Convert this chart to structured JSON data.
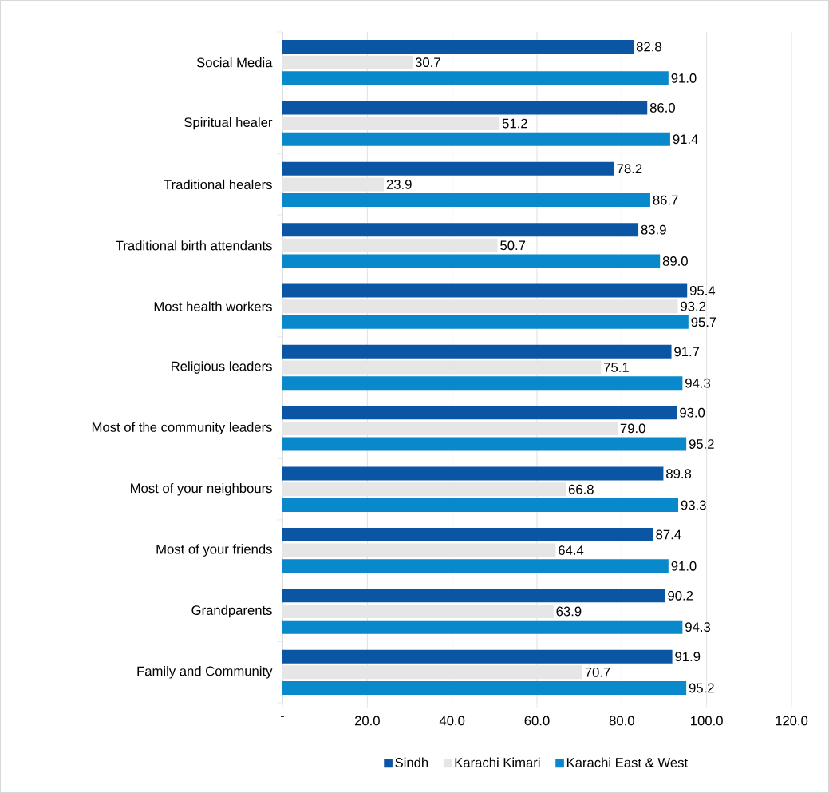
{
  "chart_data": {
    "type": "bar",
    "orientation": "horizontal",
    "categories": [
      "Social Media",
      "Spiritual healer",
      "Traditional healers",
      "Traditional birth attendants",
      "Most health workers",
      "Religious leaders",
      "Most of the community leaders",
      "Most of your neighbours",
      "Most of your friends",
      "Grandparents",
      "Family and Community"
    ],
    "series": [
      {
        "name": "Sindh",
        "color": "#0b56a4",
        "values": [
          82.8,
          86.0,
          78.2,
          83.9,
          95.4,
          91.7,
          93.0,
          89.8,
          87.4,
          90.2,
          91.9
        ],
        "value_labels": [
          "82.8",
          "86.0",
          "78.2",
          "83.9",
          "95.4",
          "91.7",
          "93.0",
          "89.8",
          "87.4",
          "90.2",
          "91.9"
        ]
      },
      {
        "name": "Karachi Kimari",
        "color": "#e7e6e6",
        "values": [
          30.7,
          51.2,
          23.9,
          50.7,
          93.2,
          75.1,
          79.0,
          66.8,
          64.4,
          63.9,
          70.7
        ],
        "value_labels": [
          "30.7",
          "51.2",
          "23.9",
          "50.7",
          "93.2",
          "75.1",
          "79.0",
          "66.8",
          "64.4",
          "63.9",
          "70.7"
        ]
      },
      {
        "name": "Karachi East & West",
        "color": "#0a88cc",
        "values": [
          91.0,
          91.4,
          86.7,
          89.0,
          95.7,
          94.3,
          95.2,
          93.3,
          91.0,
          94.3,
          95.2
        ],
        "value_labels": [
          "91.0",
          "91.4",
          "86.7",
          "89.0",
          "95.7",
          "94.3",
          "95.2",
          "93.3",
          "91.0",
          "94.3",
          "95.2"
        ]
      }
    ],
    "xlim": [
      0,
      120
    ],
    "xticks": [
      {
        "value": 0,
        "label": "-"
      },
      {
        "value": 20,
        "label": "20.0"
      },
      {
        "value": 40,
        "label": "40.0"
      },
      {
        "value": 60,
        "label": "60.0"
      },
      {
        "value": 80,
        "label": "80.0"
      },
      {
        "value": 100,
        "label": "100.0"
      },
      {
        "value": 120,
        "label": "120.0"
      }
    ],
    "grid": "x",
    "legend": "bottom"
  }
}
